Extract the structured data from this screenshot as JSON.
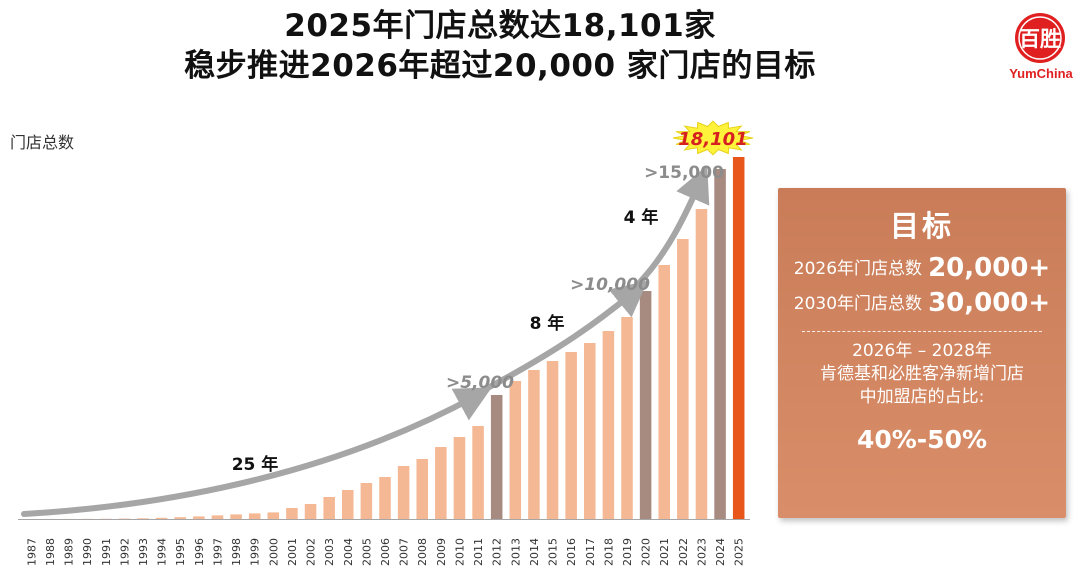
{
  "header": {
    "title_line1": "2025年门店总数达18,101家",
    "title_line2": "稳步推进2026年超过20,000 家门店的目标"
  },
  "logo": {
    "text": "YumChina",
    "glyph": "百胜"
  },
  "colors": {
    "bar_normal": "#f5b894",
    "bar_milestone": "#a88b80",
    "bar_latest": "#e8561c",
    "arrow": "#a6a6a6",
    "burst": "#fff23a",
    "burst_text": "#d62020",
    "baseline": "#a6a6a6"
  },
  "chart_data": {
    "type": "bar",
    "ylabel": "门店总数",
    "xlabel": "",
    "ylim": [
      0,
      20000
    ],
    "categories": [
      "1987",
      "1988",
      "1989",
      "1990",
      "1991",
      "1992",
      "1993",
      "1994",
      "1995",
      "1996",
      "1997",
      "1998",
      "1999",
      "2000",
      "2001",
      "2002",
      "2003",
      "2004",
      "2005",
      "2006",
      "2007",
      "2008",
      "2009",
      "2010",
      "2011",
      "2012",
      "2013",
      "2014",
      "2015",
      "2016",
      "2017",
      "2018",
      "2019",
      "2020",
      "2021",
      "2022",
      "2023",
      "2024",
      "2025"
    ],
    "values": [
      1,
      2,
      4,
      8,
      12,
      20,
      35,
      60,
      90,
      130,
      180,
      230,
      280,
      330,
      550,
      750,
      1100,
      1450,
      1800,
      2100,
      2650,
      3000,
      3600,
      4100,
      4650,
      6200,
      6900,
      7450,
      7900,
      8350,
      8800,
      9400,
      10100,
      11400,
      12700,
      14000,
      15500,
      17500,
      18101
    ],
    "milestones": [
      "2012",
      "2020",
      "2024"
    ],
    "latest": "2025",
    "annotations": {
      "milestone_labels": [
        ">5,000",
        ">10,000",
        ">15,000"
      ],
      "period_labels": [
        "25 年",
        "8 年",
        "4 年"
      ],
      "latest_label": "18,101"
    }
  },
  "goal": {
    "title": "目标",
    "row1_label": "2026年门店总数",
    "row1_value": "20,000+",
    "row2_label": "2030年门店总数",
    "row2_value": "30,000+",
    "period": "2026年 – 2028年",
    "desc1": "肯德基和必胜客净新增门店",
    "desc2": "中加盟店的占比:",
    "pct": "40%-50%"
  }
}
